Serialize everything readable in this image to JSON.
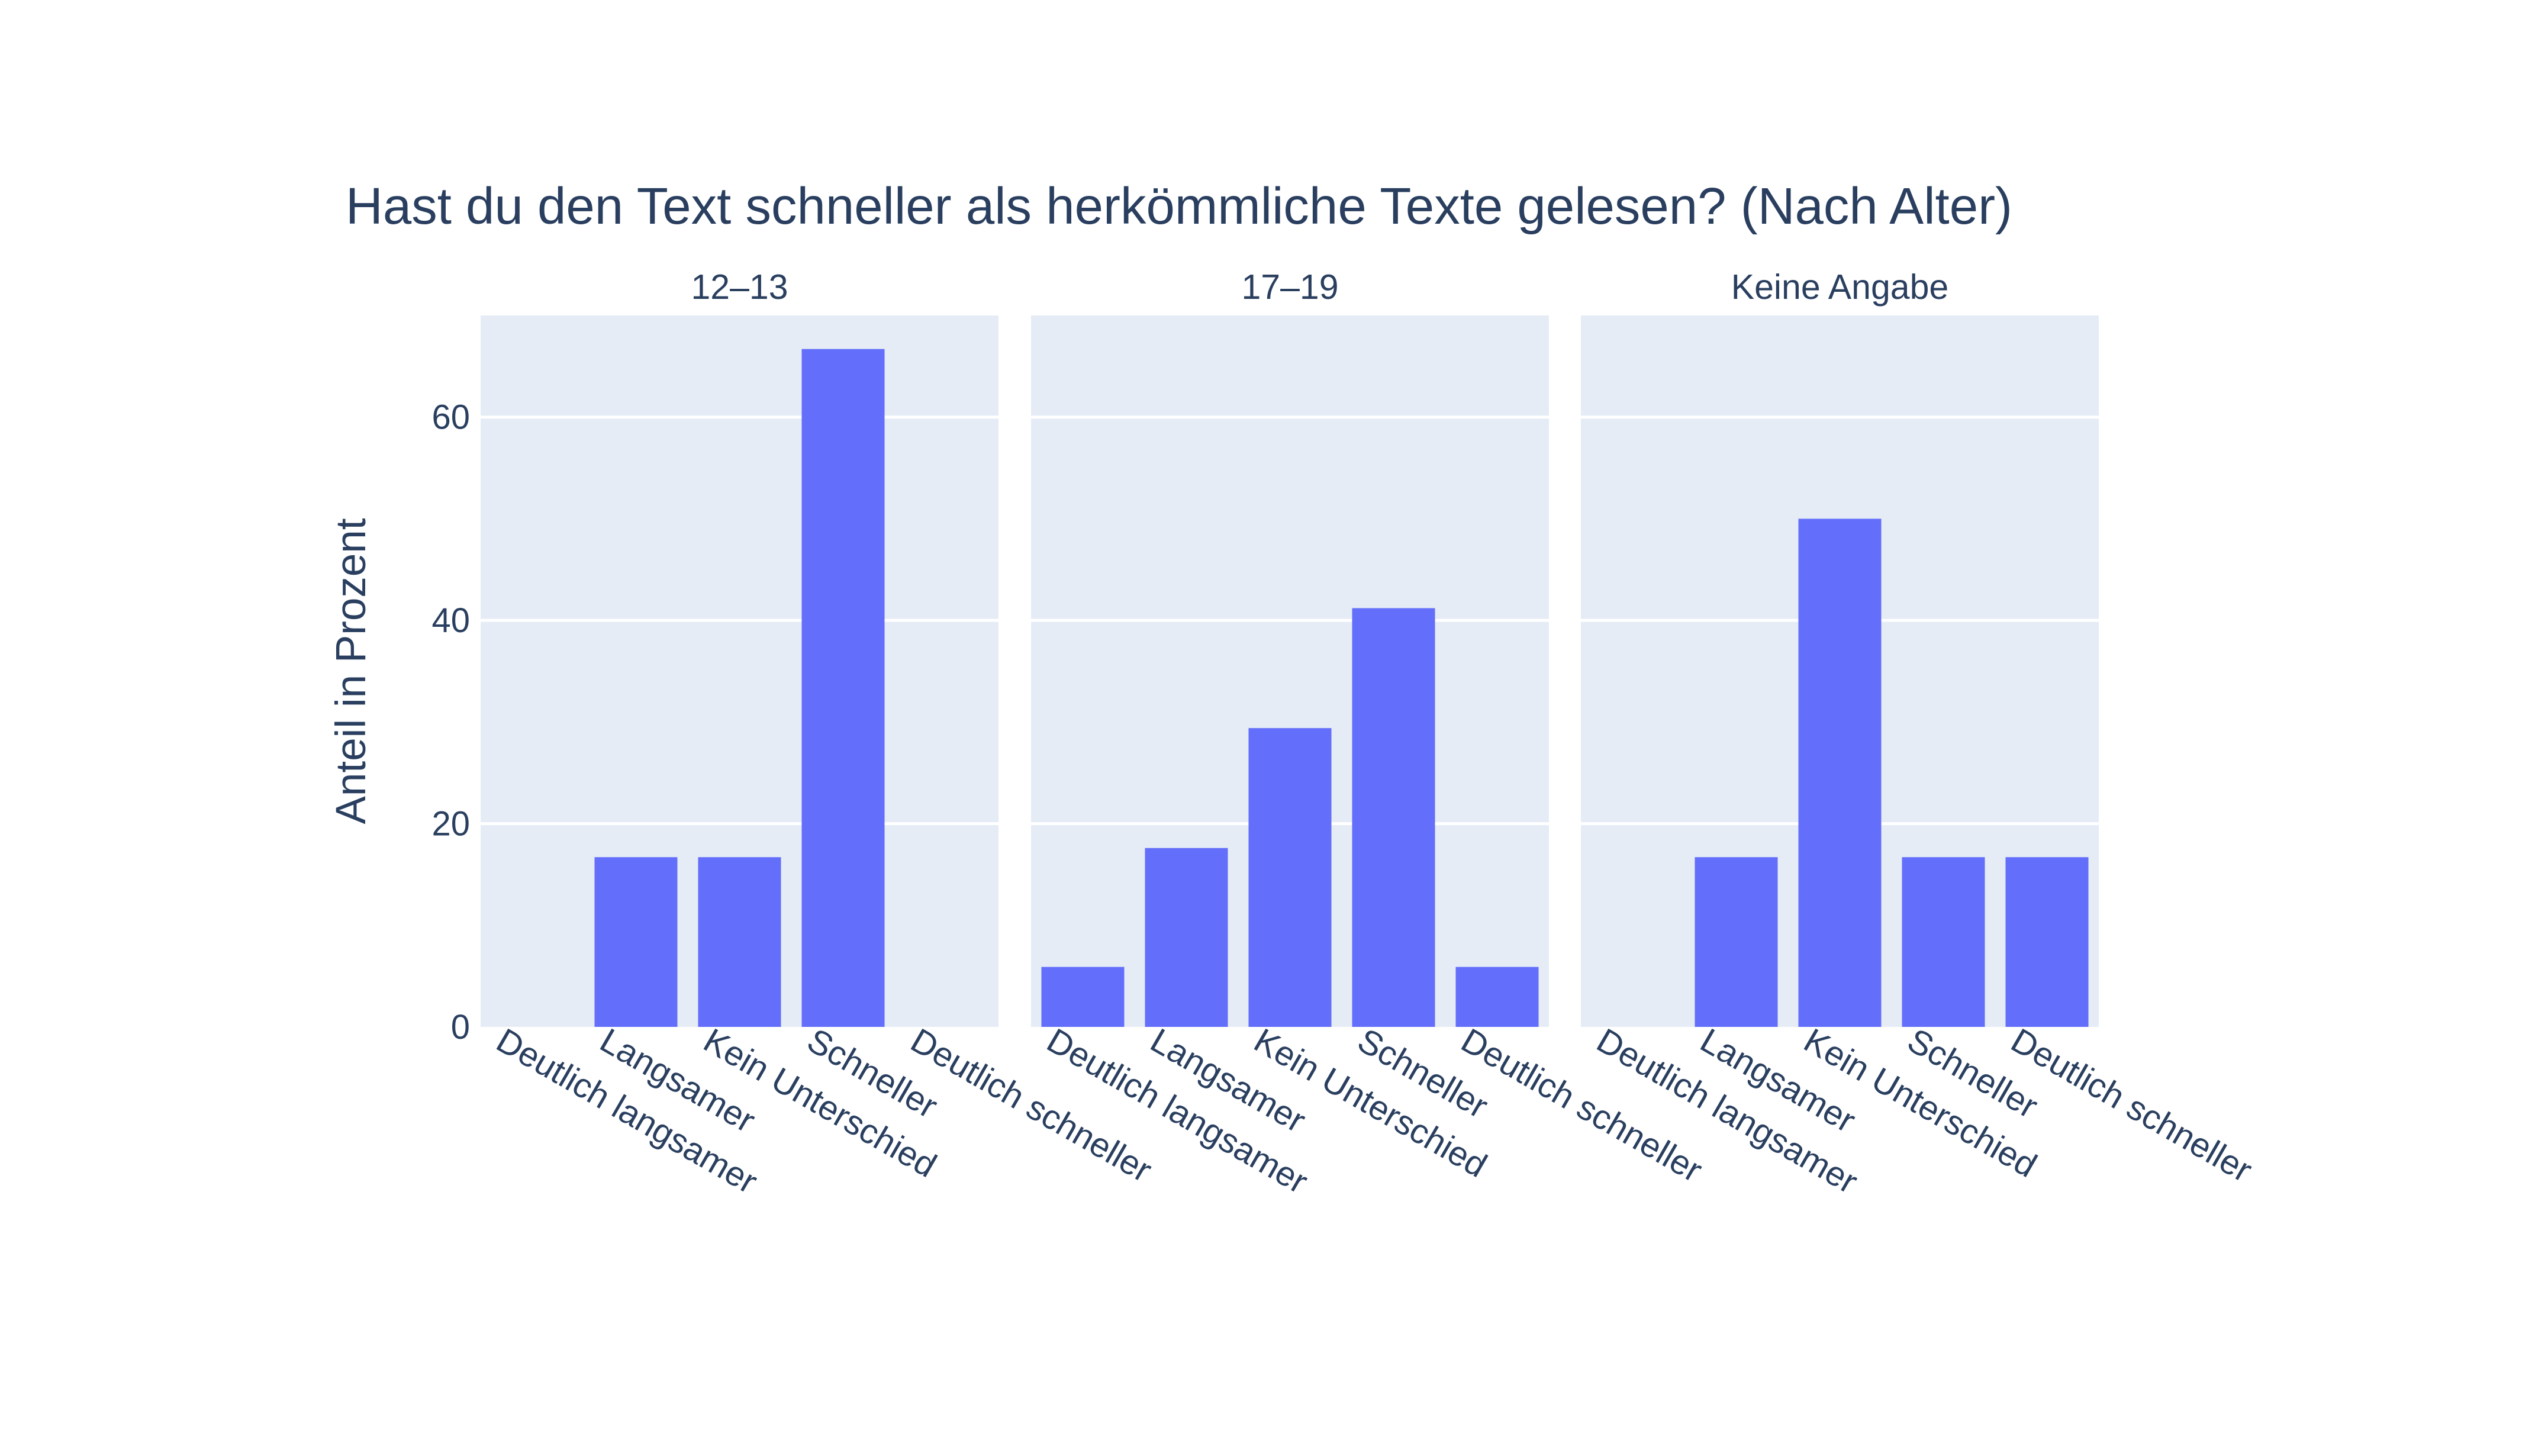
{
  "chart_data": {
    "type": "bar",
    "title": "Hast du den Text schneller als herkömmliche Texte gelesen? (Nach Alter)",
    "ylabel": "Anteil in Prozent",
    "ylim": [
      0,
      70
    ],
    "yticks": [
      0,
      20,
      40,
      60
    ],
    "grid": true,
    "bar_color": "#636efa",
    "plot_background": "#e5ecf6",
    "text_color": "#2a3f5f",
    "categories": [
      "Deutlich langsamer",
      "Langsamer",
      "Kein Unterschied",
      "Schneller",
      "Deutlich schneller"
    ],
    "panels": [
      {
        "name": "12–13",
        "values": [
          0,
          16.7,
          16.7,
          66.7,
          0
        ]
      },
      {
        "name": "17–19",
        "values": [
          5.9,
          17.6,
          29.4,
          41.2,
          5.9
        ]
      },
      {
        "name": "Keine Angabe",
        "values": [
          0,
          16.7,
          50.0,
          16.7,
          16.7
        ]
      }
    ]
  }
}
